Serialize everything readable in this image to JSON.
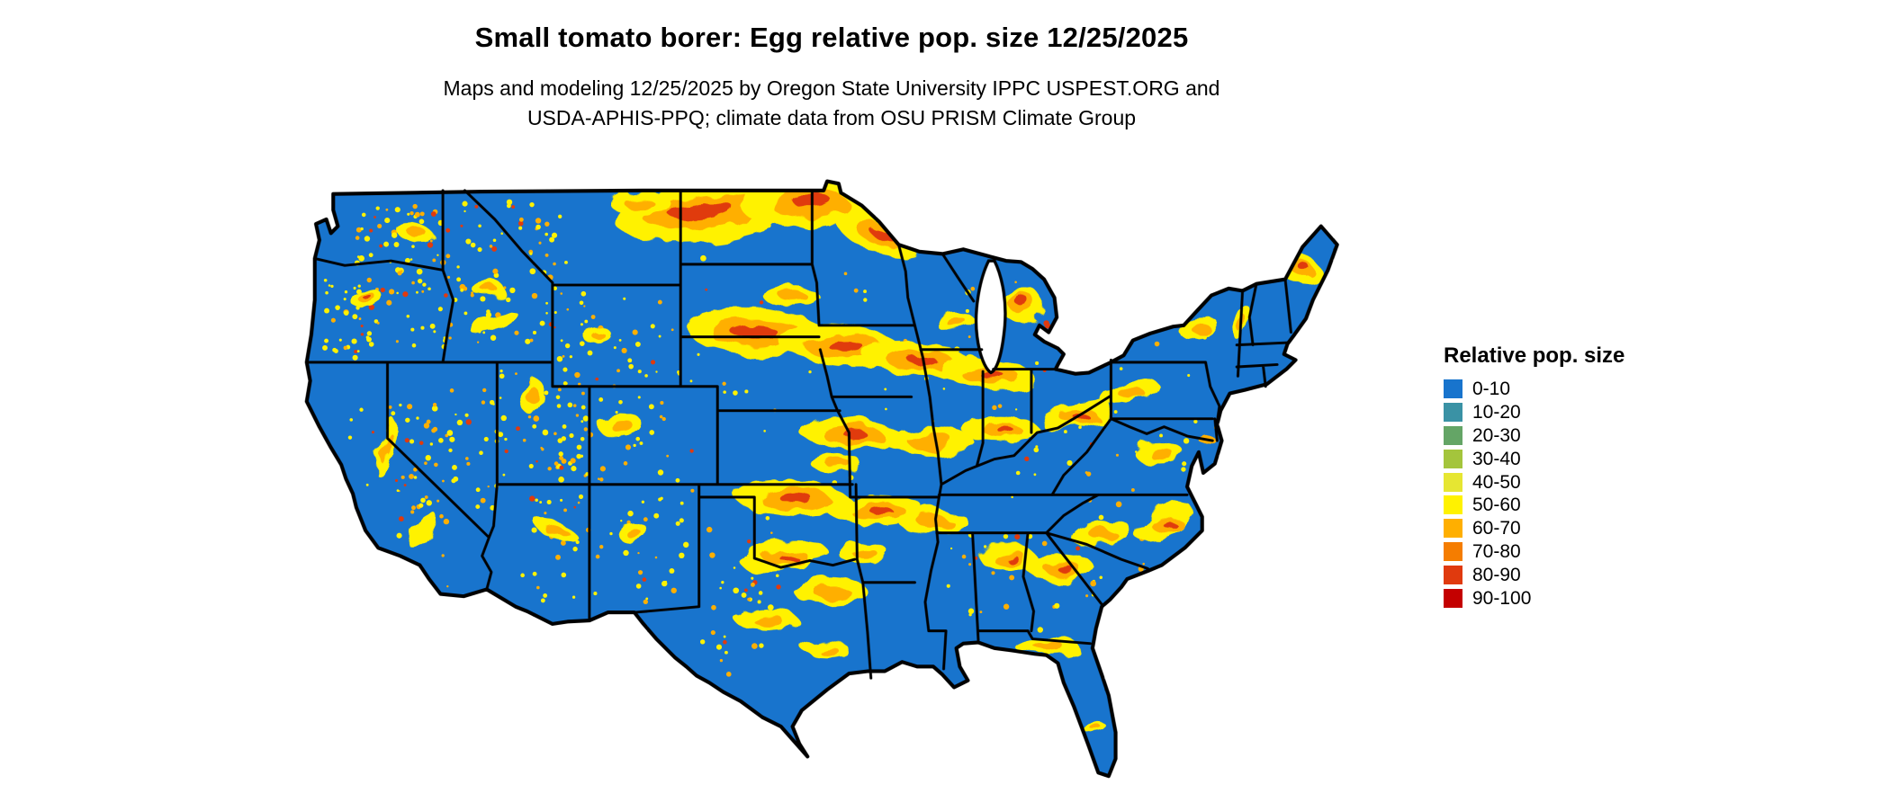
{
  "title": "Small tomato borer: Egg relative pop. size 12/25/2025",
  "subtitle": {
    "line1": "Maps and modeling 12/25/2025 by Oregon State University IPPC USPEST.ORG and",
    "line2": "USDA-APHIS-PPQ; climate data from OSU PRISM Climate Group"
  },
  "legend": {
    "title": "Relative pop. size",
    "entries": [
      {
        "label": "0-10",
        "color": "#1874cd"
      },
      {
        "label": "10-20",
        "color": "#3a92a5"
      },
      {
        "label": "20-30",
        "color": "#64a566"
      },
      {
        "label": "30-40",
        "color": "#a4c53c"
      },
      {
        "label": "40-50",
        "color": "#e6e632"
      },
      {
        "label": "50-60",
        "color": "#fff200"
      },
      {
        "label": "60-70",
        "color": "#ffaf00"
      },
      {
        "label": "70-80",
        "color": "#f57d00"
      },
      {
        "label": "80-90",
        "color": "#e03a0e"
      },
      {
        "label": "90-100",
        "color": "#c40000"
      }
    ]
  },
  "map": {
    "region": "Continental United States",
    "base_color": "#1874cd",
    "boundary_color": "#000000",
    "background_color": "#ffffff"
  },
  "chart_data": {
    "type": "heatmap",
    "title": "Small tomato borer: Egg relative pop. size 12/25/2025",
    "legend_title": "Relative pop. size",
    "bins": [
      "0-10",
      "10-20",
      "20-30",
      "30-40",
      "40-50",
      "50-60",
      "60-70",
      "70-80",
      "80-90",
      "90-100"
    ],
    "bin_colors": [
      "#1874cd",
      "#3a92a5",
      "#64a566",
      "#a4c53c",
      "#e6e632",
      "#fff200",
      "#ffaf00",
      "#f57d00",
      "#e03a0e",
      "#c40000"
    ],
    "dominant_bin": "0-10",
    "high_value_areas": [
      "eastern Montana / North Dakota / western Minnesota band",
      "central South Dakota through Iowa and central Illinois band",
      "northern Missouri / central Illinois streaks",
      "Oklahoma / Arkansas / southern Missouri band",
      "central and coastal Texas patches",
      "Mississippi / Alabama / Georgia / Carolinas patches",
      "Ohio valley and Appalachian foothill patches",
      "western lower Michigan hotspot",
      "central Maine hotspot",
      "scattered speckling across western mountain states"
    ]
  }
}
